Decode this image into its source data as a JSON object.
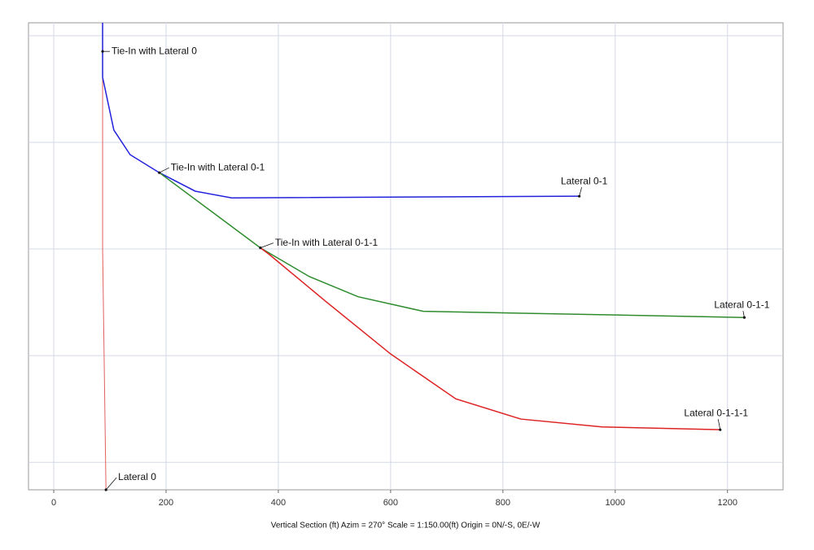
{
  "chart_data": {
    "type": "line",
    "x_label": "Vertical Section (ft) Azim = 270° Scale = 1:150.00(ft) Origin = 0N/-S, 0E/-W",
    "xlim": [
      -45,
      1299
    ],
    "ylim": [
      0,
      832
    ],
    "y_inverted": true,
    "xticks": [
      0,
      200,
      400,
      600,
      800,
      1000,
      1200
    ],
    "ygrid": [
      23,
      213,
      403,
      593,
      783
    ],
    "grid": true,
    "series": [
      {
        "color": "#e06060",
        "x": [
          87,
          87,
          93
        ],
        "values": [
          0,
          400,
          832
        ]
      },
      {
        "color": "#2222dd",
        "x": [
          87,
          87,
          107,
          136,
          188,
          252,
          317,
          936
        ],
        "values": [
          0,
          97,
          191,
          235,
          267,
          300,
          312,
          309
        ]
      },
      {
        "color": "#2e8b2e",
        "x": [
          188,
          368,
          455,
          542,
          658,
          1230
        ],
        "values": [
          267,
          401,
          452,
          488,
          514,
          525
        ]
      },
      {
        "color": "#dd2222",
        "x": [
          368,
          383,
          484,
          600,
          716,
          832,
          977,
          1187
        ],
        "values": [
          401,
          412,
          496,
          590,
          670,
          706,
          720,
          725
        ]
      }
    ],
    "annotations": [
      {
        "text": "Tie-In with Lateral 0",
        "x": 87,
        "y": 51
      },
      {
        "text": "Tie-In with Lateral 0-1",
        "x": 188,
        "y": 267
      },
      {
        "text": "Tie-In with Lateral 0-1-1",
        "x": 368,
        "y": 401
      },
      {
        "text": "Lateral 0-1",
        "x": 936,
        "y": 309
      },
      {
        "text": "Lateral 0-1-1",
        "x": 1230,
        "y": 525
      },
      {
        "text": "Lateral 0-1-1-1",
        "x": 1187,
        "y": 725
      },
      {
        "text": "Lateral 0",
        "x": 93,
        "y": 832
      }
    ]
  }
}
